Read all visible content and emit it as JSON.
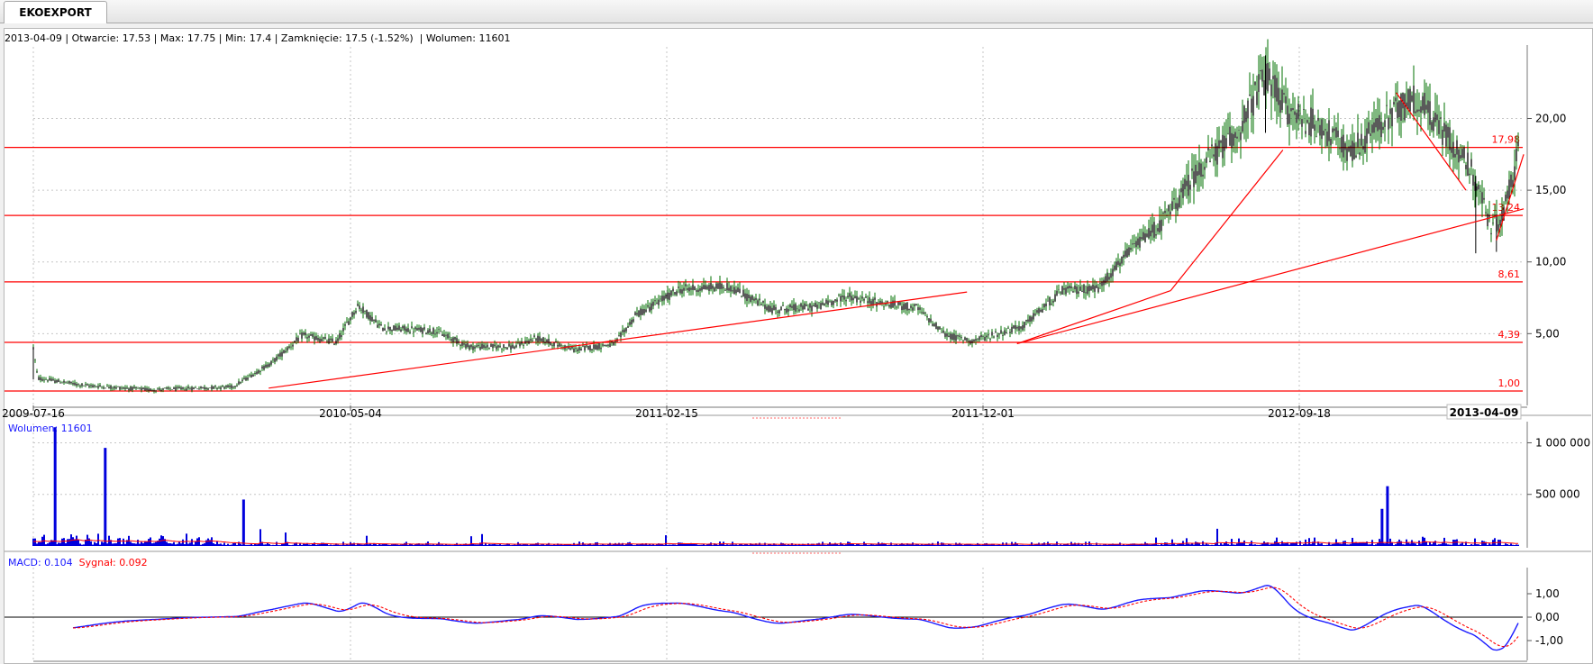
{
  "tab": {
    "label": "EKOEXPORT"
  },
  "ohlc_info": "2013-04-09 | Otwarcie: 17.53 | Max: 17.75 | Min: 17.4 | Zamknięcie: 17.5 (-1.52%)  | Wolumen: 11601",
  "volume_label": "Wolumen: 11601",
  "macd_label": "MACD: 0.104",
  "signal_label": "Sygnał: 0.092",
  "colors": {
    "candle": "#007000",
    "line": "#ff0000",
    "volume": "#0000dd",
    "macd": "#1a1aff",
    "signal": "#ff0000"
  },
  "chart_data": [
    {
      "type": "line",
      "subtype": "candlestick-price",
      "x_ticks": [
        "2009-07-16",
        "2010-05-04",
        "2011-02-15",
        "2011-12-01",
        "2012-09-18"
      ],
      "last_date": "2013-04-09",
      "y_ticks": [
        "5,00",
        "10,00",
        "15,00",
        "20,00"
      ],
      "ylim": [
        1,
        25
      ],
      "levels": [
        {
          "value": 1.0,
          "label": "1,00"
        },
        {
          "value": 4.39,
          "label": "4,39"
        },
        {
          "value": 8.61,
          "label": "8,61"
        },
        {
          "value": 13.24,
          "label": "13,24"
        },
        {
          "value": 17.98,
          "label": "17,98"
        }
      ],
      "price_path": [
        [
          "2009-07-16",
          4.0
        ],
        [
          "2009-07-20",
          1.9
        ],
        [
          "2009-09-01",
          1.4
        ],
        [
          "2009-11-01",
          1.1
        ],
        [
          "2010-01-15",
          1.3
        ],
        [
          "2010-02-20",
          3.0
        ],
        [
          "2010-03-20",
          4.9
        ],
        [
          "2010-04-20",
          4.4
        ],
        [
          "2010-05-10",
          7.0
        ],
        [
          "2010-06-01",
          5.4
        ],
        [
          "2010-07-20",
          5.2
        ],
        [
          "2010-08-20",
          4.1
        ],
        [
          "2010-10-01",
          4.1
        ],
        [
          "2010-10-20",
          4.7
        ],
        [
          "2010-11-25",
          3.9
        ],
        [
          "2011-01-01",
          4.3
        ],
        [
          "2011-01-20",
          6.3
        ],
        [
          "2011-03-01",
          8.1
        ],
        [
          "2011-04-15",
          8.3
        ],
        [
          "2011-05-25",
          6.7
        ],
        [
          "2011-07-05",
          6.9
        ],
        [
          "2011-08-01",
          7.6
        ],
        [
          "2011-09-05",
          7.1
        ],
        [
          "2011-10-05",
          6.8
        ],
        [
          "2011-11-01",
          4.9
        ],
        [
          "2011-11-25",
          4.5
        ],
        [
          "2012-01-10",
          5.5
        ],
        [
          "2012-02-15",
          8.0
        ],
        [
          "2012-03-20",
          8.2
        ],
        [
          "2012-04-20",
          11.0
        ],
        [
          "2012-05-20",
          13.0
        ],
        [
          "2012-06-20",
          16.5
        ],
        [
          "2012-07-25",
          19.0
        ],
        [
          "2012-08-20",
          23.0
        ],
        [
          "2012-09-10",
          20.5
        ],
        [
          "2012-10-10",
          19.5
        ],
        [
          "2012-11-05",
          17.5
        ],
        [
          "2012-12-05",
          19.8
        ],
        [
          "2013-01-05",
          21.5
        ],
        [
          "2013-02-05",
          18.5
        ],
        [
          "2013-02-25",
          16.5
        ],
        [
          "2013-03-15",
          12.5
        ],
        [
          "2013-03-25",
          13.0
        ]
      ],
      "trendlines": [
        {
          "from": [
            "2010-02-17",
            1.2
          ],
          "to": [
            "2011-11-20",
            7.9
          ]
        },
        {
          "from": [
            "2012-01-05",
            4.3
          ],
          "to": [
            "2013-04-14",
            13.7
          ]
        },
        {
          "from": [
            "2012-01-05",
            4.3
          ],
          "to": [
            "2012-05-25",
            8.0
          ]
        },
        {
          "from": [
            "2012-05-25",
            8.0
          ],
          "to": [
            "2012-09-05",
            17.8
          ]
        },
        {
          "from": [
            "2012-12-18",
            21.8
          ],
          "to": [
            "2013-02-20",
            15.0
          ]
        },
        {
          "from": [
            "2013-03-20",
            11.5
          ],
          "to": [
            "2013-04-14",
            17.5
          ]
        }
      ]
    },
    {
      "type": "bar",
      "subtype": "volume",
      "y_ticks": [
        "500 000",
        "1 000 000"
      ],
      "ylim": [
        0,
        1100000
      ],
      "spikes": [
        {
          "date": "2009-08-05",
          "value": 1150000
        },
        {
          "date": "2009-09-20",
          "value": 950000
        },
        {
          "date": "2010-01-25",
          "value": 450000
        },
        {
          "date": "2012-12-10",
          "value": 580000
        },
        {
          "date": "2012-12-05",
          "value": 360000
        }
      ]
    },
    {
      "type": "line",
      "subtype": "macd",
      "y_ticks": [
        "1,00",
        "0,00",
        "-1,00"
      ],
      "ylim": [
        -1.6,
        2.0
      ],
      "series": [
        {
          "name": "MACD",
          "values": []
        },
        {
          "name": "Sygnał",
          "values": []
        }
      ]
    }
  ]
}
